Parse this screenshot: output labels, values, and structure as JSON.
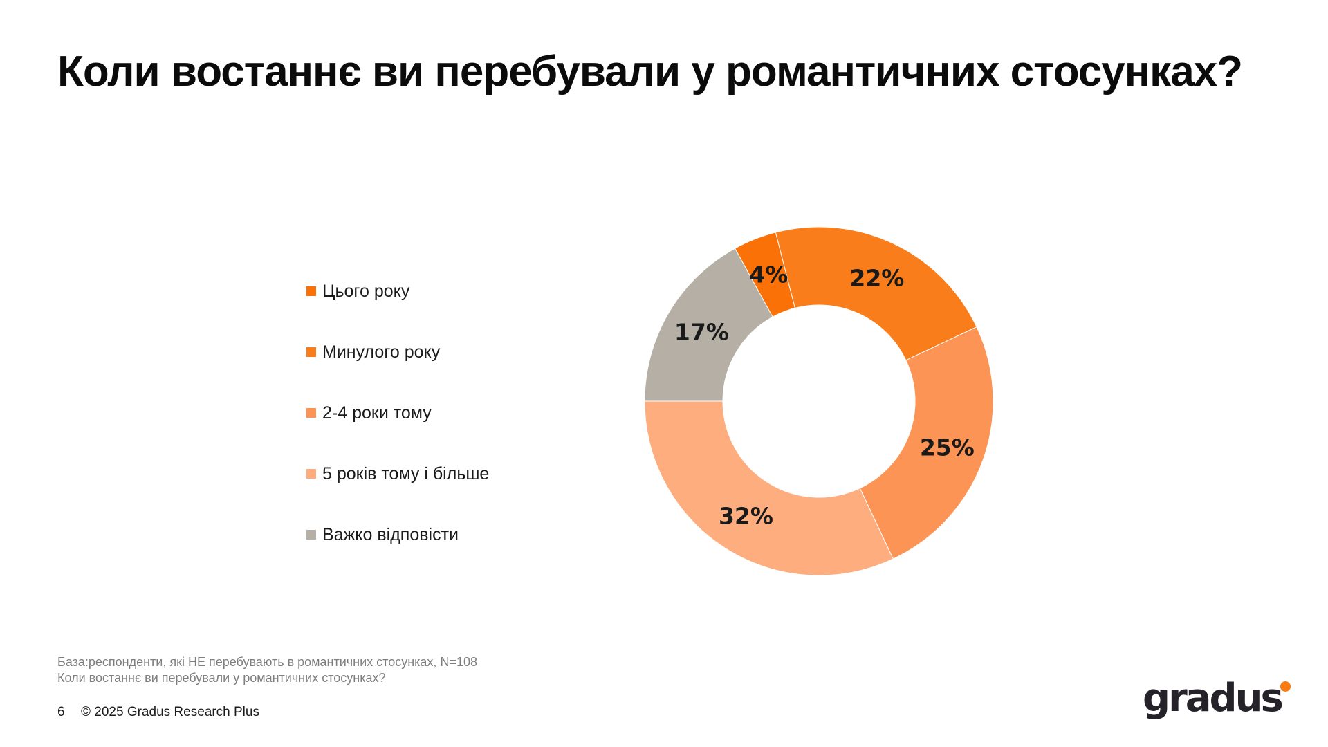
{
  "slide": {
    "title": "Коли востаннє ви перебували у романтичних стосунках?",
    "footnote": {
      "line1": "База:респонденти, які НЕ перебувають в романтичних стосунках, N=108",
      "line2": "Коли востаннє ви перебували у романтичних стосунках?"
    },
    "page_number": "6",
    "copyright": "© 2025 Gradus Research Plus",
    "logo": {
      "text": "gradus",
      "dot_color": "#F97C12"
    }
  },
  "chart_data": {
    "type": "pie",
    "subtype": "donut",
    "title": "Коли востаннє ви перебували у романтичних стосунках?",
    "categories": [
      "Цього року",
      "Минулого року",
      "2-4 роки тому",
      "5 років тому і більше",
      "Важко відповісти"
    ],
    "values": [
      4,
      22,
      25,
      32,
      17
    ],
    "data_labels": [
      "4%",
      "22%",
      "25%",
      "32%",
      "17%"
    ],
    "colors": [
      "#F97107",
      "#F97E1B",
      "#FB9455",
      "#FDAD7E",
      "#B5AFA6"
    ],
    "label_color": "#1a1a1a",
    "start_angle_deg": -28.8,
    "direction": "clockwise",
    "inner_radius_ratio": 0.55,
    "label_radius_ratio": 0.78,
    "legend_position": "left",
    "grid": false
  }
}
